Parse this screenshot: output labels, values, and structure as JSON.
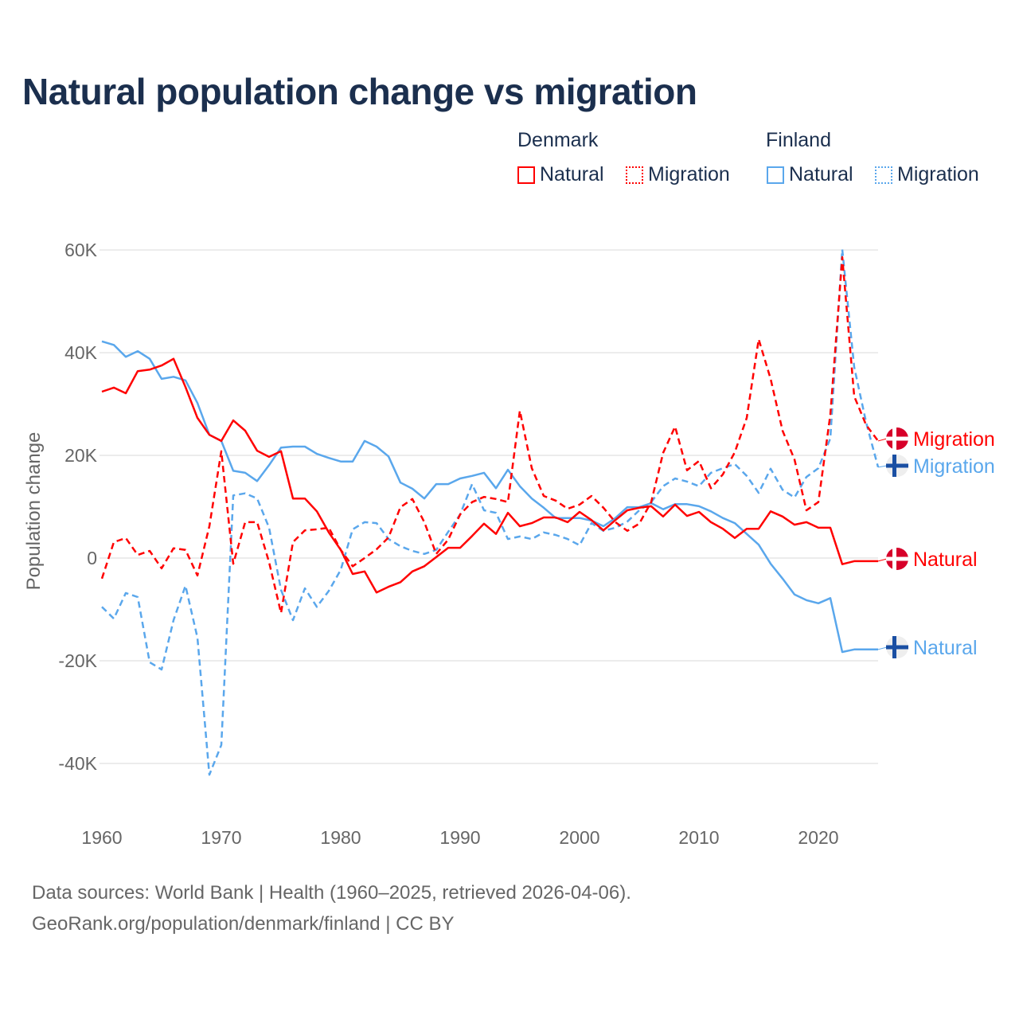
{
  "title": "Natural population change vs migration",
  "legend": {
    "groups": [
      {
        "name": "Denmark",
        "items": [
          "Natural",
          "Migration"
        ]
      },
      {
        "name": "Finland",
        "items": [
          "Natural",
          "Migration"
        ]
      }
    ]
  },
  "colors": {
    "denmark": "#ff0000",
    "finland": "#5aa7ec",
    "grid": "#e6e6e6",
    "text": "#1b2f4e"
  },
  "chart_data": {
    "type": "line",
    "title": "Natural population change vs migration",
    "ylabel": "Population change",
    "xlabel": "",
    "xlim": [
      1960,
      2025
    ],
    "ylim": [
      -40000,
      60000
    ],
    "x_ticks": [
      "1960",
      "1970",
      "1980",
      "1990",
      "2000",
      "2010",
      "2020"
    ],
    "y_ticks": [
      "60K",
      "40K",
      "20K",
      "0",
      "-20K",
      "-40K"
    ],
    "grid": true,
    "legend_position": "top-right",
    "x_start": 1960,
    "series": [
      {
        "name": "Denmark Natural",
        "country": "Denmark",
        "kind": "Natural",
        "style": "solid",
        "end_label": "Natural",
        "values": [
          32400,
          33200,
          32100,
          36400,
          36700,
          37500,
          38800,
          33300,
          27300,
          24000,
          22800,
          26800,
          24800,
          20900,
          19700,
          20800,
          11600,
          11600,
          9100,
          5000,
          1600,
          -3100,
          -2600,
          -6700,
          -5600,
          -4700,
          -2600,
          -1600,
          200,
          2000,
          2000,
          4300,
          6700,
          4700,
          8800,
          6200,
          6800,
          7900,
          7900,
          7000,
          9000,
          7400,
          5400,
          7400,
          9300,
          9800,
          10100,
          8100,
          10400,
          8200,
          9000,
          7000,
          5700,
          3900,
          5700,
          5700,
          9100,
          8100,
          6500,
          7000,
          5900,
          5900,
          -1200,
          -600,
          -600,
          -600
        ]
      },
      {
        "name": "Denmark Migration",
        "country": "Denmark",
        "kind": "Migration",
        "style": "dashed",
        "end_label": "Migration",
        "values": [
          -4000,
          3100,
          3900,
          600,
          1400,
          -2000,
          1900,
          1600,
          -3400,
          6200,
          20800,
          -1100,
          7000,
          7000,
          -800,
          -10700,
          3100,
          5400,
          5600,
          5900,
          1600,
          -1600,
          0,
          1700,
          4000,
          9900,
          11500,
          7000,
          800,
          3600,
          8500,
          10900,
          11900,
          11500,
          10900,
          28700,
          17500,
          12100,
          11200,
          9600,
          10400,
          12100,
          9800,
          7000,
          5300,
          6700,
          10900,
          20500,
          25600,
          17100,
          18900,
          13600,
          16300,
          20600,
          27300,
          42600,
          34900,
          24800,
          19200,
          9300,
          10900,
          27900,
          58600,
          31500,
          25900,
          22800
        ]
      },
      {
        "name": "Finland Natural",
        "country": "Finland",
        "kind": "Natural",
        "style": "solid",
        "end_label": "Natural",
        "values": [
          42200,
          41500,
          39200,
          40300,
          38800,
          34900,
          35300,
          34600,
          30200,
          24000,
          22800,
          17000,
          16600,
          15000,
          18100,
          21500,
          21700,
          21700,
          20300,
          19500,
          18800,
          18800,
          22800,
          21700,
          19800,
          14700,
          13500,
          11600,
          14400,
          14400,
          15500,
          16000,
          16600,
          13600,
          17200,
          14000,
          11600,
          9800,
          7800,
          7800,
          7800,
          7300,
          6200,
          7800,
          9900,
          9900,
          10700,
          9500,
          10500,
          10500,
          10100,
          9100,
          7800,
          6800,
          4700,
          2600,
          -1100,
          -4000,
          -7100,
          -8200,
          -8800,
          -7800,
          -18300,
          -17800,
          -17800,
          -17800
        ]
      },
      {
        "name": "Finland Migration",
        "country": "Finland",
        "kind": "Migration",
        "style": "dashed",
        "end_label": "Migration",
        "values": [
          -9500,
          -11800,
          -6800,
          -7600,
          -20300,
          -21700,
          -12100,
          -5400,
          -15500,
          -42200,
          -36400,
          12200,
          12600,
          11600,
          5900,
          -6200,
          -12100,
          -5900,
          -9500,
          -6400,
          -2300,
          5600,
          7000,
          6800,
          3700,
          2300,
          1400,
          800,
          1600,
          5100,
          8500,
          14400,
          9300,
          8800,
          3700,
          4200,
          3700,
          5000,
          4500,
          3700,
          2500,
          6800,
          5300,
          5900,
          7100,
          9300,
          10900,
          14000,
          15500,
          14900,
          14000,
          16600,
          17500,
          18300,
          16000,
          12700,
          17400,
          13300,
          11800,
          15800,
          17500,
          23300,
          60100,
          37200,
          26400,
          17700
        ]
      }
    ]
  },
  "footer": {
    "line1": "Data sources: World Bank | Health (1960–2025, retrieved 2026-04-06).",
    "line2": "GeoRank.org/population/denmark/finland | CC BY"
  }
}
